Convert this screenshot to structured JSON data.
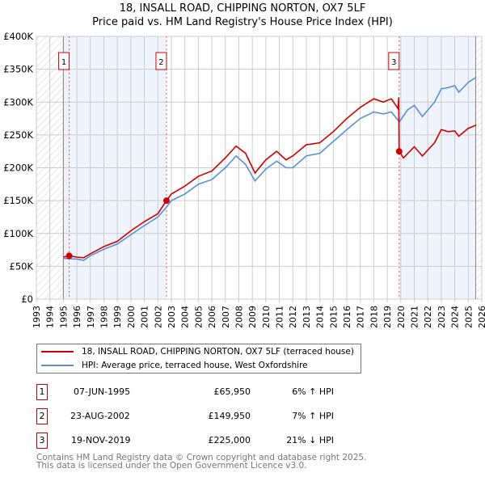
{
  "title": "18, INSALL ROAD, CHIPPING NORTON, OX7 5LF",
  "subtitle": "Price paid vs. HM Land Registry's House Price Index (HPI)",
  "chart_data": {
    "type": "line",
    "title": "18, INSALL ROAD, CHIPPING NORTON, OX7 5LF — Price paid vs. HM Land Registry's House Price Index (HPI)",
    "xlim": [
      1993,
      2026
    ],
    "ylim": [
      0,
      400000
    ],
    "x_ticks": [
      "1993",
      "1994",
      "1995",
      "1996",
      "1997",
      "1998",
      "1999",
      "2000",
      "2001",
      "2002",
      "2003",
      "2004",
      "2005",
      "2006",
      "2007",
      "2008",
      "2009",
      "2010",
      "2011",
      "2012",
      "2013",
      "2014",
      "2015",
      "2016",
      "2017",
      "2018",
      "2019",
      "2020",
      "2021",
      "2022",
      "2023",
      "2024",
      "2025",
      "2026"
    ],
    "y_ticks": [
      {
        "v": 0,
        "label": "£0"
      },
      {
        "v": 50000,
        "label": "£50K"
      },
      {
        "v": 100000,
        "label": "£100K"
      },
      {
        "v": 150000,
        "label": "£150K"
      },
      {
        "v": 200000,
        "label": "£200K"
      },
      {
        "v": 250000,
        "label": "£250K"
      },
      {
        "v": 300000,
        "label": "£300K"
      },
      {
        "v": 350000,
        "label": "£350K"
      },
      {
        "v": 400000,
        "label": "£400K"
      }
    ],
    "grid": true,
    "series": [
      {
        "name": "18, INSALL ROAD, CHIPPING NORTON, OX7 5LF (terraced house)",
        "color": "#cc0000",
        "x": [
          1995.0,
          1995.43,
          1996,
          1996.5,
          1997,
          1998,
          1999,
          2000,
          2001,
          2002,
          2002.64,
          2003,
          2004,
          2005,
          2006,
          2007,
          2007.8,
          2008.5,
          2009.2,
          2010,
          2010.8,
          2011.5,
          2012,
          2013,
          2014,
          2015,
          2016,
          2017,
          2018,
          2018.7,
          2019.3,
          2019.8,
          2019.85,
          2019.88,
          2020.2,
          2021,
          2021.6,
          2022.5,
          2023,
          2023.5,
          2024,
          2024.3,
          2025,
          2025.6
        ],
        "y": [
          64000,
          65950,
          64000,
          63000,
          69000,
          80000,
          88000,
          104000,
          118000,
          130000,
          149950,
          160000,
          172000,
          187000,
          195000,
          215000,
          233000,
          222000,
          192000,
          212000,
          225000,
          212000,
          218000,
          235000,
          238000,
          255000,
          275000,
          292000,
          305000,
          300000,
          305000,
          290000,
          307000,
          225000,
          215000,
          232000,
          218000,
          238000,
          258000,
          255000,
          256000,
          248000,
          260000,
          265000
        ]
      },
      {
        "name": "HPI: Average price, terraced house, West Oxfordshire",
        "color": "#5b8fd4",
        "x": [
          1995.0,
          1996,
          1996.5,
          1997,
          1998,
          1999,
          2000,
          2001,
          2002,
          2002.64,
          2003,
          2004,
          2005,
          2006,
          2007,
          2007.8,
          2008.5,
          2009.2,
          2010,
          2010.8,
          2011.5,
          2012,
          2013,
          2014,
          2015,
          2016,
          2017,
          2018,
          2018.7,
          2019.3,
          2019.9,
          2020.5,
          2021,
          2021.6,
          2022.5,
          2023,
          2023.5,
          2024,
          2024.3,
          2025,
          2025.6
        ],
        "y": [
          62000,
          61000,
          59000,
          66000,
          76000,
          84000,
          98000,
          112000,
          125000,
          140000,
          150000,
          160000,
          175000,
          182000,
          200000,
          218000,
          205000,
          180000,
          198000,
          210000,
          200000,
          200000,
          218000,
          222000,
          240000,
          258000,
          275000,
          285000,
          282000,
          285000,
          270000,
          288000,
          295000,
          278000,
          300000,
          320000,
          322000,
          325000,
          315000,
          330000,
          338000
        ]
      }
    ],
    "sales": [
      {
        "label": "1",
        "x": 1995.43,
        "y": 65950
      },
      {
        "label": "2",
        "x": 2002.64,
        "y": 149950
      },
      {
        "label": "3",
        "x": 2019.88,
        "y": 225000
      }
    ],
    "legend_position": "below"
  },
  "legend": [
    "18, INSALL ROAD, CHIPPING NORTON, OX7 5LF (terraced house)",
    "HPI: Average price, terraced house, West Oxfordshire"
  ],
  "transactions": [
    {
      "num": "1",
      "date": "07-JUN-1995",
      "price": "£65,950",
      "hpi": "6% ↑ HPI"
    },
    {
      "num": "2",
      "date": "23-AUG-2002",
      "price": "£149,950",
      "hpi": "7% ↑ HPI"
    },
    {
      "num": "3",
      "date": "19-NOV-2019",
      "price": "£225,000",
      "hpi": "21% ↓ HPI"
    }
  ],
  "footer": [
    "Contains HM Land Registry data © Crown copyright and database right 2025.",
    "This data is licensed under the Open Government Licence v3.0."
  ]
}
